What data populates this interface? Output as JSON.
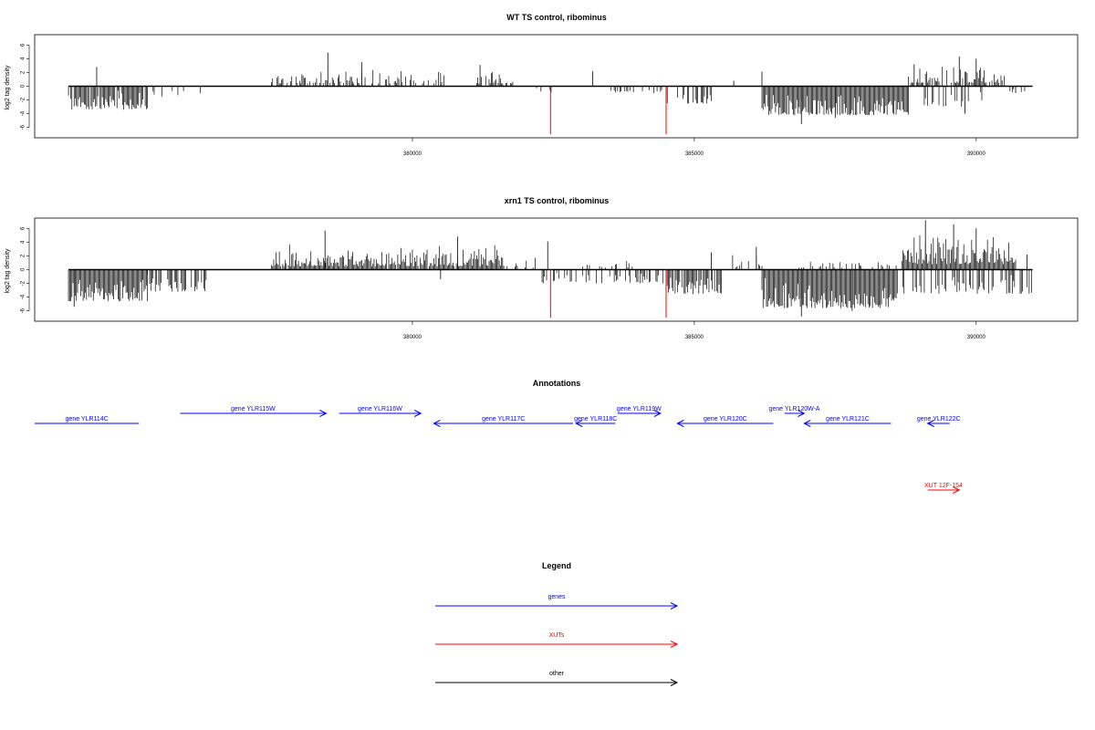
{
  "chart_data": [
    {
      "type": "bar",
      "title": "WT TS control, ribominus",
      "xlabel": "",
      "ylabel": "log2 tag density",
      "ylim": [
        -7.5,
        7.5
      ],
      "xlim": [
        373300,
        391800
      ],
      "xticks": [
        380000,
        385000,
        390000
      ],
      "yticks": [
        -6,
        -4,
        -2,
        0,
        2,
        4,
        6
      ],
      "baseline": [
        373900,
        391000
      ],
      "seed": 7,
      "segments": [
        {
          "from": 373900,
          "to": 375300,
          "density": 0.85,
          "min": -3.4,
          "max": -0.5
        },
        {
          "from": 375300,
          "to": 376400,
          "density": 0.15,
          "min": -1.5,
          "max": -0.3
        },
        {
          "from": 377500,
          "to": 380600,
          "density": 0.45,
          "min": 0.4,
          "max": 2.8
        },
        {
          "from": 381000,
          "to": 381800,
          "density": 0.45,
          "min": 0.4,
          "max": 2.4
        },
        {
          "from": 382200,
          "to": 382500,
          "density": 0.25,
          "min": -1.0,
          "max": -0.2
        },
        {
          "from": 383500,
          "to": 384500,
          "density": 0.3,
          "min": -1.0,
          "max": -0.2
        },
        {
          "from": 384500,
          "to": 385300,
          "density": 0.65,
          "min": -2.5,
          "max": -0.5
        },
        {
          "from": 386200,
          "to": 388800,
          "density": 1.0,
          "min": -4.2,
          "max": -0.8
        },
        {
          "from": 388800,
          "to": 390500,
          "density": 0.7,
          "min": 0.5,
          "max": 3.2
        },
        {
          "from": 389000,
          "to": 390200,
          "density": 0.25,
          "min": -3.0,
          "max": -0.5
        },
        {
          "from": 390500,
          "to": 390900,
          "density": 0.2,
          "min": -0.9,
          "max": -0.3
        }
      ],
      "spikes": [
        {
          "x": 374400,
          "y": 2.8
        },
        {
          "x": 378500,
          "y": 4.9
        },
        {
          "x": 377700,
          "y": 1.0
        },
        {
          "x": 379100,
          "y": 3.5
        },
        {
          "x": 381200,
          "y": 3.1
        },
        {
          "x": 383200,
          "y": 2.2
        },
        {
          "x": 385700,
          "y": 0.8
        },
        {
          "x": 386200,
          "y": 2.1
        },
        {
          "x": 386900,
          "y": -5.5
        },
        {
          "x": 387500,
          "y": -4.6
        },
        {
          "x": 388900,
          "y": 3.2
        },
        {
          "x": 389700,
          "y": 4.3
        },
        {
          "x": 390000,
          "y": 4.0
        },
        {
          "x": 389800,
          "y": -4.0
        },
        {
          "x": 390700,
          "y": -1.0
        }
      ],
      "red_lines": [
        {
          "x": 382450,
          "y": -7
        },
        {
          "x": 384500,
          "y": -7
        }
      ]
    },
    {
      "type": "bar",
      "title": "xrn1 TS control, ribominus",
      "xlabel": "",
      "ylabel": "log2 tag density",
      "ylim": [
        -7.5,
        7.5
      ],
      "xlim": [
        373300,
        391800
      ],
      "xticks": [
        380000,
        385000,
        390000
      ],
      "yticks": [
        -6,
        -4,
        -2,
        0,
        2,
        4,
        6
      ],
      "baseline": [
        373900,
        391000
      ],
      "seed": 19,
      "segments": [
        {
          "from": 373900,
          "to": 375300,
          "density": 1.0,
          "min": -4.6,
          "max": -0.8
        },
        {
          "from": 375300,
          "to": 376400,
          "density": 0.45,
          "min": -3.2,
          "max": -0.3
        },
        {
          "from": 377500,
          "to": 381600,
          "density": 0.95,
          "min": 0.5,
          "max": 3.8
        },
        {
          "from": 381600,
          "to": 382300,
          "density": 0.35,
          "min": 0.3,
          "max": 2.0
        },
        {
          "from": 382300,
          "to": 384500,
          "density": 0.4,
          "min": -2.0,
          "max": -0.3
        },
        {
          "from": 382800,
          "to": 384000,
          "density": 0.2,
          "min": 0.3,
          "max": 1.4
        },
        {
          "from": 384500,
          "to": 385500,
          "density": 0.9,
          "min": -3.6,
          "max": -0.5
        },
        {
          "from": 385500,
          "to": 386200,
          "density": 0.3,
          "min": 0.3,
          "max": 2.6
        },
        {
          "from": 386200,
          "to": 388600,
          "density": 1.0,
          "min": -5.6,
          "max": -1.2
        },
        {
          "from": 386800,
          "to": 388700,
          "density": 0.25,
          "min": 0.3,
          "max": 1.4
        },
        {
          "from": 388700,
          "to": 390700,
          "density": 1.0,
          "min": 0.8,
          "max": 5.5
        },
        {
          "from": 388700,
          "to": 391000,
          "density": 0.55,
          "min": -3.5,
          "max": -0.5
        }
      ],
      "spikes": [
        {
          "x": 374000,
          "y": -5.4
        },
        {
          "x": 378450,
          "y": 5.7
        },
        {
          "x": 380800,
          "y": 4.8
        },
        {
          "x": 380500,
          "y": -1.4
        },
        {
          "x": 382400,
          "y": 4.1
        },
        {
          "x": 385300,
          "y": 2.5
        },
        {
          "x": 386100,
          "y": 3.3
        },
        {
          "x": 386900,
          "y": -6.8
        },
        {
          "x": 387800,
          "y": -6.0
        },
        {
          "x": 389100,
          "y": 7.2
        },
        {
          "x": 389600,
          "y": 6.6
        },
        {
          "x": 390000,
          "y": 6.0
        },
        {
          "x": 390900,
          "y": 2.2
        }
      ],
      "red_lines": [
        {
          "x": 382450,
          "y": -7
        },
        {
          "x": 384500,
          "y": -7
        }
      ]
    }
  ],
  "annotations": {
    "title": "Annotations",
    "genes": [
      {
        "label": "gene YLR114C",
        "from": 373300,
        "to": 375150,
        "dir": "none",
        "row": 2,
        "color": "#0000ff"
      },
      {
        "label": "gene YLR115W",
        "from": 375880,
        "to": 378470,
        "dir": "right",
        "row": 1,
        "color": "#0000ff"
      },
      {
        "label": "gene YLR116W",
        "from": 378700,
        "to": 380150,
        "dir": "right",
        "row": 1,
        "color": "#0000ff"
      },
      {
        "label": "gene YLR117C",
        "from": 380380,
        "to": 382850,
        "dir": "left",
        "row": 2,
        "color": "#0000ff"
      },
      {
        "label": "gene YLR118C",
        "from": 382900,
        "to": 383600,
        "dir": "left",
        "row": 2,
        "color": "#0000ff"
      },
      {
        "label": "gene YLR119W",
        "from": 383640,
        "to": 384400,
        "dir": "right",
        "row": 1,
        "color": "#0000ff"
      },
      {
        "label": "gene YLR120C",
        "from": 384700,
        "to": 386400,
        "dir": "left",
        "row": 2,
        "color": "#0000ff"
      },
      {
        "label": "gene YLR120W-A",
        "from": 386600,
        "to": 386950,
        "dir": "right",
        "row": 1,
        "color": "#0000ff"
      },
      {
        "label": "gene YLR121C",
        "from": 386950,
        "to": 388490,
        "dir": "left",
        "row": 2,
        "color": "#0000ff"
      },
      {
        "label": "gene YLR122C",
        "from": 389140,
        "to": 389530,
        "dir": "left",
        "row": 2,
        "color": "#0000ff"
      },
      {
        "label": "XUT 12F-154",
        "from": 389140,
        "to": 389700,
        "dir": "right",
        "row": 3,
        "color": "#ff0000"
      }
    ]
  },
  "legend": {
    "title": "Legend",
    "items": [
      {
        "label": "genes",
        "color": "#0000ff"
      },
      {
        "label": "XUTs",
        "color": "#ff0000"
      },
      {
        "label": "other",
        "color": "#000000"
      }
    ]
  }
}
